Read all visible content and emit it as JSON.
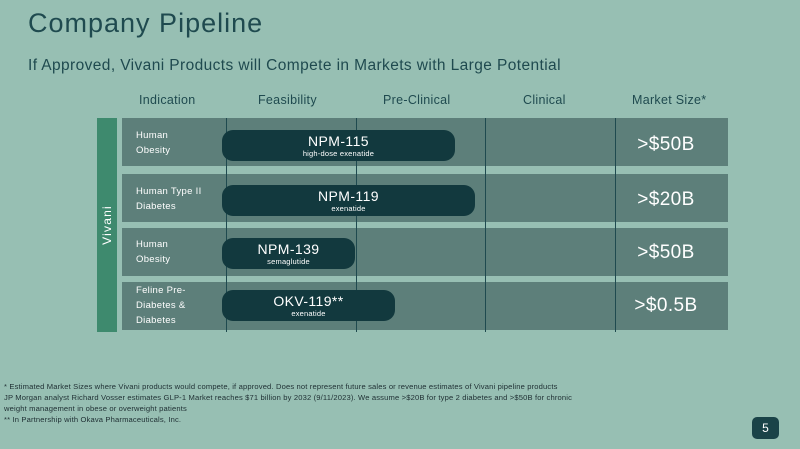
{
  "header": {
    "title": "Company Pipeline",
    "subtitle": "If Approved, Vivani Products will Compete in Markets with Large Potential"
  },
  "columns": {
    "indication": "Indication",
    "feasibility": "Feasibility",
    "preclinical": "Pre-Clinical",
    "clinical": "Clinical",
    "market_size": "Market Size*"
  },
  "side_label": "Vivani",
  "rows": [
    {
      "indication_line1": "Human",
      "indication_line2": "Obesity",
      "indication_line3": "",
      "product": "NPM-115",
      "compound": "high-dose exenatide",
      "market": ">$50B"
    },
    {
      "indication_line1": "Human Type II",
      "indication_line2": "Diabetes",
      "indication_line3": "",
      "product": "NPM-119",
      "compound": "exenatide",
      "market": ">$20B"
    },
    {
      "indication_line1": "Human",
      "indication_line2": "Obesity",
      "indication_line3": "",
      "product": "NPM-139",
      "compound": "semaglutide",
      "market": ">$50B"
    },
    {
      "indication_line1": "Feline Pre-",
      "indication_line2": "Diabetes &",
      "indication_line3": "Diabetes",
      "product": "OKV-119**",
      "compound": "exenatide",
      "market": ">$0.5B"
    }
  ],
  "footnotes": {
    "line1": "* Estimated Market Sizes where Vivani products would compete, if approved. Does not represent future sales or revenue estimates of Vivani pipeline products",
    "line2": "JP Morgan analyst Richard Vosser estimates GLP-1 Market reaches $71 billion by 2032 (9/11/2023). We assume >$20B for type 2 diabetes and >$50B for chronic",
    "line3": "weight management in obese or overweight patients",
    "line4": "** In Partnership with Okava Pharmaceuticals, Inc."
  },
  "page_number": "5",
  "colors": {
    "background": "#97bfb3",
    "row": "#5d7f7a",
    "pill": "#12393e",
    "side_bar": "#3e8a6e"
  }
}
